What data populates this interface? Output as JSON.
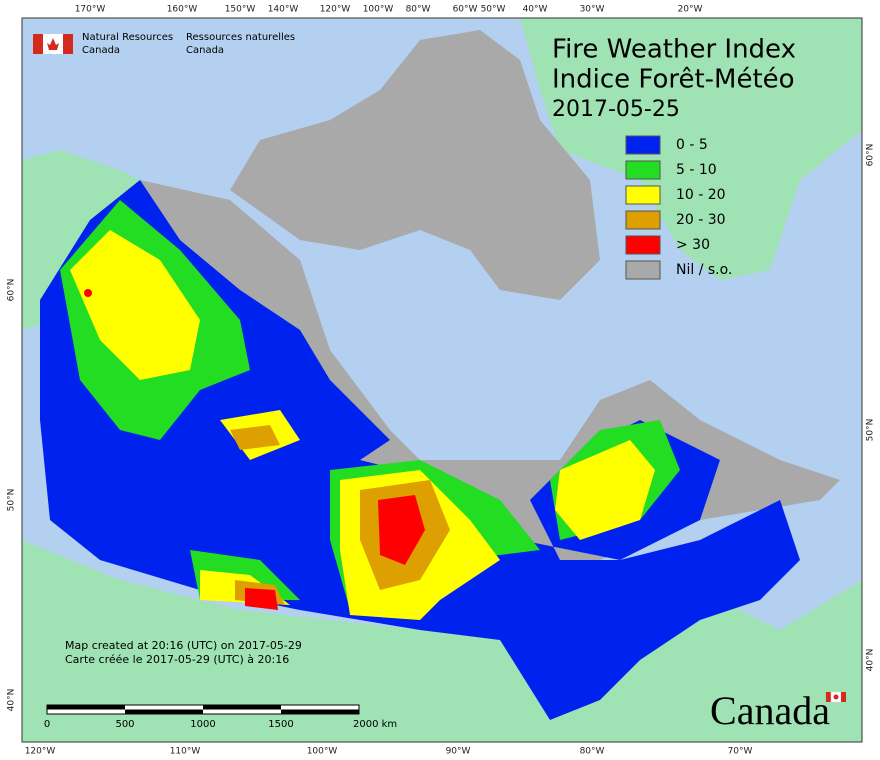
{
  "header": {
    "agency_en": [
      "Natural Resources",
      "Canada"
    ],
    "agency_fr": [
      "Ressources naturelles",
      "Canada"
    ]
  },
  "title": {
    "line1": "Fire Weather Index",
    "line2": "Indice Forêt-Météo",
    "date": "2017-05-25"
  },
  "legend": [
    {
      "label": "0 - 5",
      "color": "#0022ee"
    },
    {
      "label": "5 - 10",
      "color": "#22dd22"
    },
    {
      "label": "10 - 20",
      "color": "#ffff00"
    },
    {
      "label": "20 - 30",
      "color": "#dda000"
    },
    {
      "label": "> 30",
      "color": "#ff0000"
    },
    {
      "label": "Nil / s.o.",
      "color": "#a9a9a9"
    }
  ],
  "graticule": {
    "top": [
      "170°W",
      "160°W",
      "150°W",
      "140°W",
      "120°W",
      "100°W",
      "80°W",
      "60°W",
      "50°W",
      "40°W",
      "30°W",
      "20°W"
    ],
    "bottom": [
      "120°W",
      "110°W",
      "100°W",
      "90°W",
      "80°W",
      "70°W"
    ],
    "left": [
      "60°N",
      "50°N",
      "40°N"
    ],
    "right": [
      "60°N",
      "50°N",
      "40°N"
    ]
  },
  "credits": [
    "Map created at 20:16 (UTC) on 2017-05-29",
    "Carte créée le 2017-05-29 (UTC) à 20:16"
  ],
  "scale": [
    "0",
    "500",
    "1000",
    "1500",
    "2000 km"
  ],
  "wordmark": "Canada"
}
